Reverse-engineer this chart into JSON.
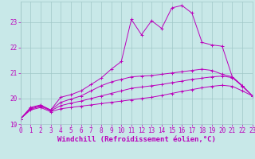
{
  "xlabel": "Windchill (Refroidissement éolien,°C)",
  "xlim": [
    0,
    23
  ],
  "ylim": [
    19,
    23.8
  ],
  "yticks": [
    19,
    20,
    21,
    22,
    23
  ],
  "xticks": [
    0,
    1,
    2,
    3,
    4,
    5,
    6,
    7,
    8,
    9,
    10,
    11,
    12,
    13,
    14,
    15,
    16,
    17,
    18,
    19,
    20,
    21,
    22,
    23
  ],
  "bg_color": "#c8e8e8",
  "grid_color": "#a0c8c8",
  "line_color": "#bb00bb",
  "curves": {
    "upper": {
      "x": [
        0,
        1,
        2,
        3,
        4,
        5,
        6,
        7,
        8,
        9,
        10,
        11,
        12,
        13,
        14,
        15,
        16,
        17,
        18,
        19,
        20,
        21,
        22,
        23
      ],
      "y": [
        19.2,
        19.65,
        19.75,
        19.55,
        20.05,
        20.15,
        20.3,
        20.55,
        20.8,
        21.15,
        21.45,
        23.1,
        22.5,
        23.05,
        22.75,
        23.55,
        23.65,
        23.35,
        22.2,
        22.1,
        22.05,
        20.85,
        20.5,
        20.1
      ]
    },
    "mid1": {
      "x": [
        0,
        1,
        2,
        3,
        4,
        5,
        6,
        7,
        8,
        9,
        10,
        11,
        12,
        13,
        14,
        15,
        16,
        17,
        18,
        19,
        20,
        21,
        22,
        23
      ],
      "y": [
        19.2,
        19.62,
        19.72,
        19.55,
        19.85,
        19.98,
        20.1,
        20.3,
        20.5,
        20.65,
        20.75,
        20.85,
        20.88,
        20.9,
        20.95,
        21.0,
        21.05,
        21.1,
        21.15,
        21.1,
        20.95,
        20.85,
        20.5,
        20.1
      ]
    },
    "mid2": {
      "x": [
        0,
        1,
        2,
        3,
        4,
        5,
        6,
        7,
        8,
        9,
        10,
        11,
        12,
        13,
        14,
        15,
        16,
        17,
        18,
        19,
        20,
        21,
        22,
        23
      ],
      "y": [
        19.2,
        19.58,
        19.7,
        19.52,
        19.72,
        19.82,
        19.9,
        20.0,
        20.1,
        20.2,
        20.3,
        20.4,
        20.45,
        20.5,
        20.55,
        20.62,
        20.68,
        20.75,
        20.8,
        20.85,
        20.88,
        20.82,
        20.48,
        20.1
      ]
    },
    "lower": {
      "x": [
        0,
        1,
        2,
        3,
        4,
        5,
        6,
        7,
        8,
        9,
        10,
        11,
        12,
        13,
        14,
        15,
        16,
        17,
        18,
        19,
        20,
        21,
        22,
        23
      ],
      "y": [
        19.2,
        19.55,
        19.65,
        19.48,
        19.6,
        19.65,
        19.7,
        19.75,
        19.8,
        19.85,
        19.9,
        19.95,
        20.0,
        20.05,
        20.12,
        20.2,
        20.28,
        20.35,
        20.42,
        20.48,
        20.52,
        20.48,
        20.3,
        20.1
      ]
    }
  },
  "font_family": "monospace",
  "xlabel_fontsize": 6.5,
  "tick_fontsize": 5.5
}
